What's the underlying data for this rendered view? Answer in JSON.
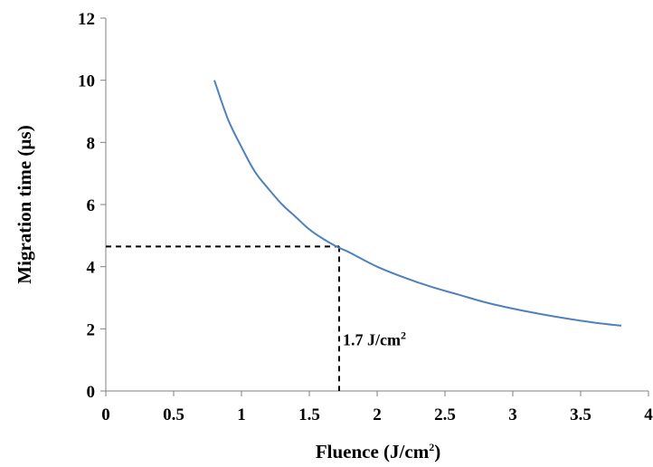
{
  "chart_data": {
    "type": "line",
    "xlabel": {
      "text": "Fluence (J/cm",
      "sup": "2",
      "tail": ")"
    },
    "ylabel": "Migration time (µs)",
    "xlim": [
      0,
      4
    ],
    "ylim": [
      0,
      12
    ],
    "x_ticks": [
      "0",
      "0.5",
      "1",
      "1.5",
      "2",
      "2.5",
      "3",
      "3.5",
      "4"
    ],
    "y_ticks": [
      "0",
      "2",
      "4",
      "6",
      "8",
      "10",
      "12"
    ],
    "grid": false,
    "line_color": "#4F81BD",
    "series": [
      {
        "x": [
          0.8,
          0.9,
          1.0,
          1.1,
          1.2,
          1.3,
          1.4,
          1.5,
          1.6,
          1.7,
          1.75,
          1.8,
          2.0,
          2.2,
          2.4,
          2.6,
          2.8,
          3.0,
          3.2,
          3.4,
          3.6,
          3.8
        ],
        "y": [
          10.0,
          8.75,
          7.85,
          7.05,
          6.5,
          6.0,
          5.6,
          5.2,
          4.9,
          4.65,
          4.55,
          4.45,
          4.0,
          3.65,
          3.35,
          3.1,
          2.85,
          2.65,
          2.48,
          2.33,
          2.2,
          2.1
        ]
      }
    ],
    "annotation": {
      "label": "1.7 J/cm",
      "sup": "2",
      "x": 1.72,
      "y": 4.65
    }
  }
}
